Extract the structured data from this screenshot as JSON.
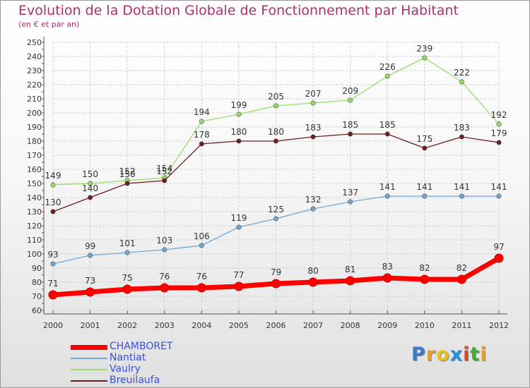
{
  "title": "Evolution de la Dotation Globale de Fonctionnement par Habitant",
  "subtitle": "(en € et par an)",
  "logo_text": "Proxiti",
  "chart_data": {
    "type": "line",
    "title": "Evolution de la Dotation Globale de Fonctionnement par Habitant",
    "subtitle": "(en € et par an)",
    "x": [
      "2000",
      "2001",
      "2002",
      "2003",
      "2004",
      "2005",
      "2006",
      "2007",
      "2008",
      "2009",
      "2010",
      "2011",
      "2012"
    ],
    "ylim": [
      60,
      250
    ],
    "yticks": [
      60,
      70,
      80,
      90,
      100,
      110,
      120,
      130,
      140,
      150,
      160,
      170,
      180,
      190,
      200,
      210,
      220,
      230,
      240,
      250
    ],
    "grid": true,
    "legend_position": "bottom-left",
    "series": [
      {
        "name": "CHAMBORET",
        "color": "#ff0000",
        "emphasis": true,
        "values": [
          71,
          73,
          75,
          76,
          76,
          77,
          79,
          80,
          81,
          83,
          82,
          82,
          97
        ]
      },
      {
        "name": "Nantiat",
        "color": "#6fa8d6",
        "values": [
          93,
          99,
          101,
          103,
          106,
          119,
          125,
          132,
          137,
          141,
          141,
          141,
          141
        ]
      },
      {
        "name": "Vaulry",
        "color": "#99dd66",
        "values": [
          149,
          150,
          152,
          154,
          194,
          199,
          205,
          207,
          209,
          226,
          239,
          222,
          192
        ]
      },
      {
        "name": "Breuilaufa",
        "color": "#6b1c22",
        "values": [
          130,
          140,
          150,
          152,
          178,
          180,
          180,
          183,
          185,
          185,
          175,
          183,
          179
        ]
      }
    ]
  }
}
